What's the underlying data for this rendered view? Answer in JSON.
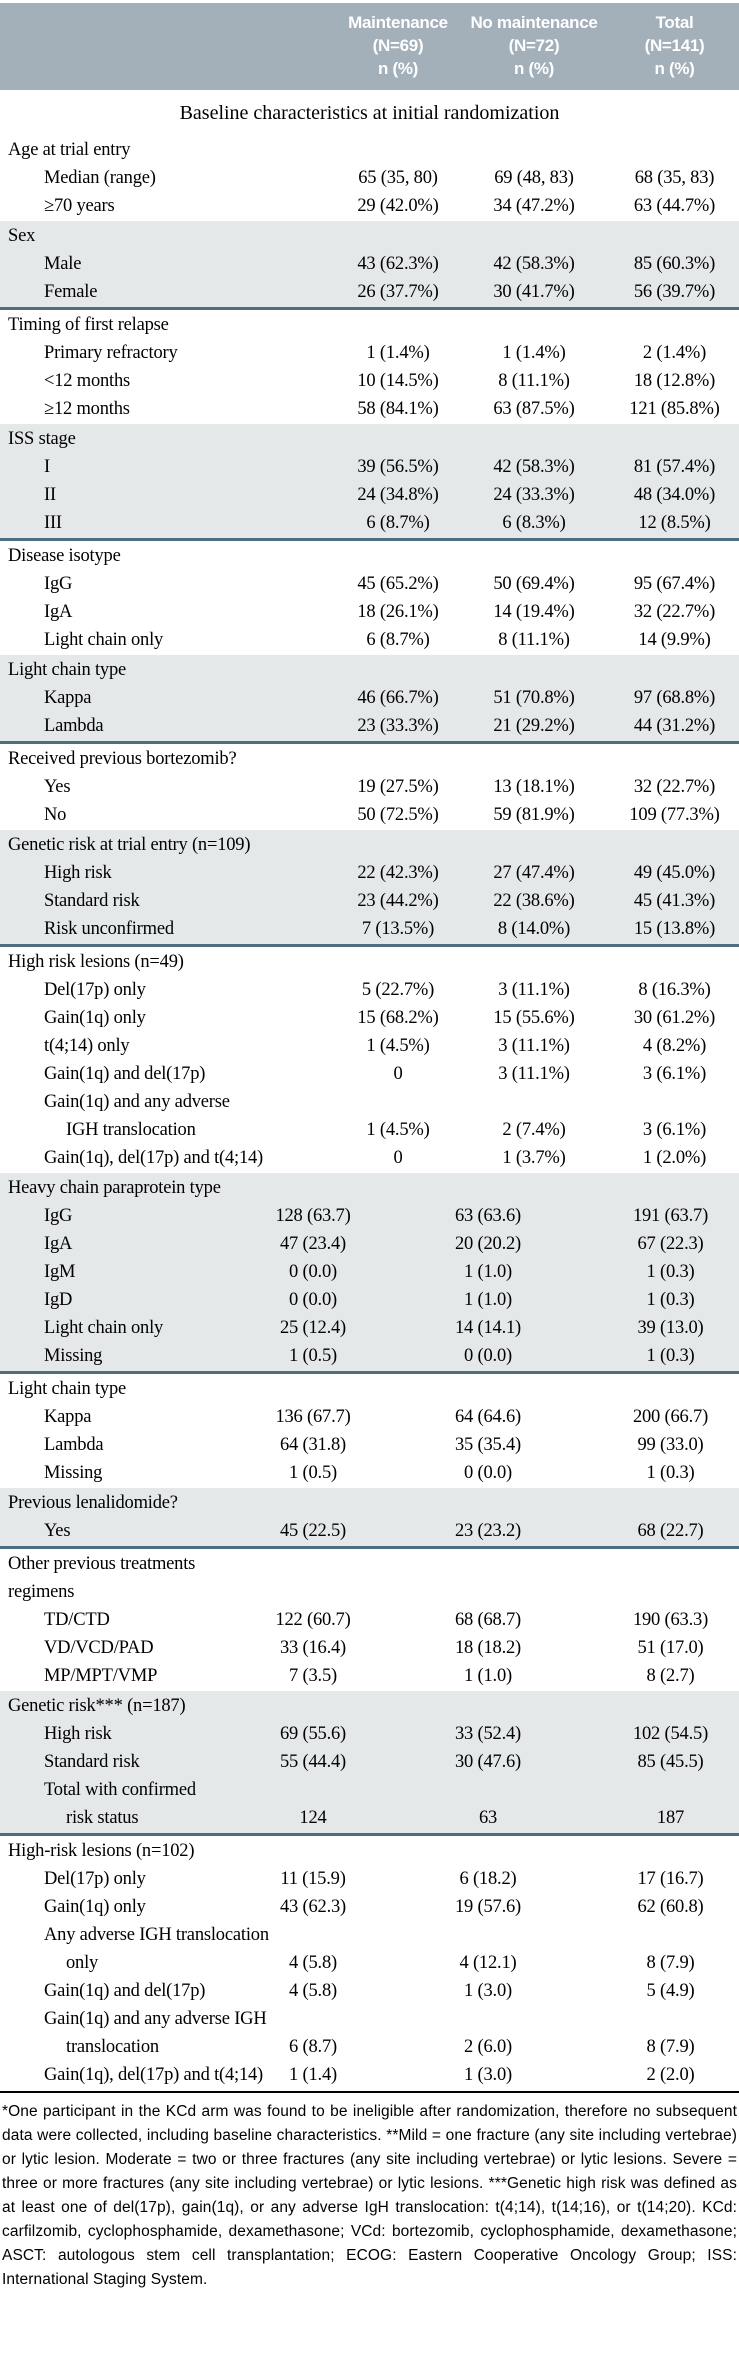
{
  "colors": {
    "header_bg": "#a3afb9",
    "shaded_bg": "#e5e8e9",
    "divider": "#4e6d7e",
    "header_text": "#ffffff"
  },
  "header": {
    "columns": [
      {
        "line1": "Maintenance",
        "line2": "(N=69)",
        "line3": "n (%)"
      },
      {
        "line1": "No maintenance",
        "line2": "(N=72)",
        "line3": "n (%)"
      },
      {
        "line1": "Total",
        "line2": "(N=141)",
        "line3": "n (%)"
      }
    ]
  },
  "title": "Baseline characteristics at initial randomization",
  "sections": [
    {
      "label_lines": [
        "Age at trial entry"
      ],
      "shaded": false,
      "divider": false,
      "layout": "top",
      "rows": [
        {
          "label": "Median (range)",
          "indent": 1,
          "values": [
            "65 (35, 80)",
            "69 (48, 83)",
            "68 (35, 83)"
          ]
        },
        {
          "label": "≥70 years",
          "indent": 1,
          "values": [
            "29 (42.0%)",
            "34 (47.2%)",
            "63 (44.7%)"
          ]
        }
      ]
    },
    {
      "label_lines": [
        "Sex"
      ],
      "shaded": true,
      "divider": true,
      "layout": "top",
      "rows": [
        {
          "label": "Male",
          "indent": 1,
          "values": [
            "43 (62.3%)",
            "42 (58.3%)",
            "85 (60.3%)"
          ]
        },
        {
          "label": "Female",
          "indent": 1,
          "values": [
            "26 (37.7%)",
            "30 (41.7%)",
            "56 (39.7%)"
          ]
        }
      ]
    },
    {
      "label_lines": [
        "Timing of first relapse"
      ],
      "shaded": false,
      "divider": false,
      "layout": "top",
      "rows": [
        {
          "label": "Primary refractory",
          "indent": 1,
          "values": [
            "1 (1.4%)",
            "1 (1.4%)",
            "2 (1.4%)"
          ]
        },
        {
          "label": "<12 months",
          "indent": 1,
          "values": [
            "10 (14.5%)",
            "8 (11.1%)",
            "18 (12.8%)"
          ]
        },
        {
          "label": "≥12 months",
          "indent": 1,
          "values": [
            "58 (84.1%)",
            "63 (87.5%)",
            "121 (85.8%)"
          ]
        }
      ]
    },
    {
      "label_lines": [
        "ISS stage"
      ],
      "shaded": true,
      "divider": true,
      "layout": "top",
      "rows": [
        {
          "label": "I",
          "indent": 1,
          "values": [
            "39 (56.5%)",
            "42 (58.3%)",
            "81 (57.4%)"
          ]
        },
        {
          "label": "II",
          "indent": 1,
          "values": [
            "24 (34.8%)",
            "24 (33.3%)",
            "48 (34.0%)"
          ]
        },
        {
          "label": "III",
          "indent": 1,
          "values": [
            "6 (8.7%)",
            "6 (8.3%)",
            "12 (8.5%)"
          ]
        }
      ]
    },
    {
      "label_lines": [
        "Disease isotype"
      ],
      "shaded": false,
      "divider": false,
      "layout": "top",
      "rows": [
        {
          "label": "IgG",
          "indent": 1,
          "values": [
            "45 (65.2%)",
            "50 (69.4%)",
            "95 (67.4%)"
          ]
        },
        {
          "label": "IgA",
          "indent": 1,
          "values": [
            "18 (26.1%)",
            "14 (19.4%)",
            "32 (22.7%)"
          ]
        },
        {
          "label": "Light chain only",
          "indent": 1,
          "values": [
            "6 (8.7%)",
            "8 (11.1%)",
            "14 (9.9%)"
          ]
        }
      ]
    },
    {
      "label_lines": [
        "Light chain type"
      ],
      "shaded": true,
      "divider": true,
      "layout": "top",
      "rows": [
        {
          "label": "Kappa",
          "indent": 1,
          "values": [
            "46 (66.7%)",
            "51 (70.8%)",
            "97 (68.8%)"
          ]
        },
        {
          "label": "Lambda",
          "indent": 1,
          "values": [
            "23 (33.3%)",
            "21 (29.2%)",
            "44 (31.2%)"
          ]
        }
      ]
    },
    {
      "label_lines": [
        "Received previous bortezomib?"
      ],
      "shaded": false,
      "divider": false,
      "layout": "top",
      "rows": [
        {
          "label": "Yes",
          "indent": 1,
          "values": [
            "19 (27.5%)",
            "13 (18.1%)",
            "32 (22.7%)"
          ]
        },
        {
          "label": "No",
          "indent": 1,
          "values": [
            "50 (72.5%)",
            "59 (81.9%)",
            "109 (77.3%)"
          ]
        }
      ]
    },
    {
      "label_lines": [
        "Genetic risk at trial entry (n=109)"
      ],
      "shaded": true,
      "divider": true,
      "layout": "top",
      "rows": [
        {
          "label": "High risk",
          "indent": 1,
          "values": [
            "22 (42.3%)",
            "27 (47.4%)",
            "49 (45.0%)"
          ]
        },
        {
          "label": "Standard risk",
          "indent": 1,
          "values": [
            "23 (44.2%)",
            "22 (38.6%)",
            "45 (41.3%)"
          ]
        },
        {
          "label": "Risk unconfirmed",
          "indent": 1,
          "values": [
            "7 (13.5%)",
            "8 (14.0%)",
            "15 (13.8%)"
          ]
        }
      ]
    },
    {
      "label_lines": [
        "High risk lesions (n=49)"
      ],
      "shaded": false,
      "divider": false,
      "layout": "top",
      "rows": [
        {
          "label": "Del(17p) only",
          "indent": 1,
          "values": [
            "5 (22.7%)",
            "3 (11.1%)",
            "8 (16.3%)"
          ]
        },
        {
          "label": "Gain(1q) only",
          "indent": 1,
          "values": [
            "15 (68.2%)",
            "15 (55.6%)",
            "30 (61.2%)"
          ]
        },
        {
          "label": "t(4;14) only",
          "indent": 1,
          "values": [
            "1 (4.5%)",
            "3 (11.1%)",
            "4 (8.2%)"
          ]
        },
        {
          "label": "Gain(1q) and del(17p)",
          "indent": 1,
          "values": [
            "0",
            "3 (11.1%)",
            "3 (6.1%)"
          ]
        },
        {
          "label": "Gain(1q) and any adverse",
          "indent": 1,
          "values": [
            "",
            "",
            ""
          ]
        },
        {
          "label": "IGH translocation",
          "indent": 2,
          "values": [
            "1 (4.5%)",
            "2 (7.4%)",
            "3 (6.1%)"
          ]
        },
        {
          "label": "Gain(1q), del(17p) and t(4;14)",
          "indent": 1,
          "values": [
            "0",
            "1 (3.7%)",
            "1 (2.0%)"
          ]
        }
      ]
    },
    {
      "label_lines": [
        "Heavy chain paraprotein type"
      ],
      "shaded": true,
      "divider": true,
      "layout": "bottom",
      "rows": [
        {
          "label": "IgG",
          "indent": 1,
          "values": [
            "128 (63.7)",
            "63 (63.6)",
            "191 (63.7)"
          ]
        },
        {
          "label": "IgA",
          "indent": 1,
          "values": [
            "47 (23.4)",
            "20 (20.2)",
            "67 (22.3)"
          ]
        },
        {
          "label": "IgM",
          "indent": 1,
          "values": [
            "0 (0.0)",
            "1 (1.0)",
            "1 (0.3)"
          ]
        },
        {
          "label": "IgD",
          "indent": 1,
          "values": [
            "0 (0.0)",
            "1 (1.0)",
            "1 (0.3)"
          ]
        },
        {
          "label": "Light chain only",
          "indent": 1,
          "values": [
            "25 (12.4)",
            "14 (14.1)",
            "39 (13.0)"
          ]
        },
        {
          "label": "Missing",
          "indent": 1,
          "values": [
            "1 (0.5)",
            "0 (0.0)",
            "1 (0.3)"
          ]
        }
      ]
    },
    {
      "label_lines": [
        "Light chain type"
      ],
      "shaded": false,
      "divider": false,
      "layout": "bottom",
      "rows": [
        {
          "label": "Kappa",
          "indent": 1,
          "values": [
            "136 (67.7)",
            "64 (64.6)",
            "200 (66.7)"
          ]
        },
        {
          "label": "Lambda",
          "indent": 1,
          "values": [
            "64 (31.8)",
            "35 (35.4)",
            "99 (33.0)"
          ]
        },
        {
          "label": "Missing",
          "indent": 1,
          "values": [
            "1 (0.5)",
            "0 (0.0)",
            "1 (0.3)"
          ]
        }
      ]
    },
    {
      "label_lines": [
        "Previous lenalidomide?"
      ],
      "shaded": true,
      "divider": true,
      "layout": "bottom",
      "rows": [
        {
          "label": "Yes",
          "indent": 1,
          "values": [
            "45 (22.5)",
            "23 (23.2)",
            "68 (22.7)"
          ]
        }
      ]
    },
    {
      "label_lines": [
        "Other previous treatments",
        "regimens"
      ],
      "shaded": false,
      "divider": false,
      "layout": "bottom",
      "rows": [
        {
          "label": "TD/CTD",
          "indent": 1,
          "values": [
            "122 (60.7)",
            "68 (68.7)",
            "190 (63.3)"
          ]
        },
        {
          "label": "VD/VCD/PAD",
          "indent": 1,
          "values": [
            "33 (16.4)",
            "18 (18.2)",
            "51 (17.0)"
          ]
        },
        {
          "label": "MP/MPT/VMP",
          "indent": 1,
          "values": [
            "7 (3.5)",
            "1 (1.0)",
            "8 (2.7)"
          ]
        }
      ]
    },
    {
      "label_lines": [
        "Genetic risk*** (n=187)"
      ],
      "shaded": true,
      "divider": true,
      "layout": "bottom",
      "rows": [
        {
          "label": "High risk",
          "indent": 1,
          "values": [
            "69 (55.6)",
            "33 (52.4)",
            "102 (54.5)"
          ]
        },
        {
          "label": "Standard risk",
          "indent": 1,
          "values": [
            "55 (44.4)",
            "30 (47.6)",
            "85 (45.5)"
          ]
        },
        {
          "label": "Total with confirmed",
          "indent": 1,
          "values": [
            "",
            "",
            ""
          ]
        },
        {
          "label": "risk status",
          "indent": 2,
          "values": [
            "124",
            "63",
            "187"
          ]
        }
      ]
    },
    {
      "label_lines": [
        "High-risk lesions (n=102)"
      ],
      "shaded": false,
      "divider": false,
      "layout": "bottom",
      "rows": [
        {
          "label": "Del(17p) only",
          "indent": 1,
          "values": [
            "11 (15.9)",
            "6 (18.2)",
            "17 (16.7)"
          ]
        },
        {
          "label": "Gain(1q) only",
          "indent": 1,
          "values": [
            "43 (62.3)",
            "19 (57.6)",
            "62 (60.8)"
          ]
        },
        {
          "label": "Any adverse IGH translocation",
          "indent": 1,
          "values": [
            "",
            "",
            ""
          ]
        },
        {
          "label": "only",
          "indent": 2,
          "values": [
            "4 (5.8)",
            "4 (12.1)",
            "8 (7.9)"
          ]
        },
        {
          "label": "Gain(1q) and del(17p)",
          "indent": 1,
          "values": [
            "4 (5.8)",
            "1 (3.0)",
            "5 (4.9)"
          ]
        },
        {
          "label": "Gain(1q) and any adverse IGH",
          "indent": 1,
          "values": [
            "",
            "",
            ""
          ]
        },
        {
          "label": "translocation",
          "indent": 2,
          "values": [
            "6 (8.7)",
            "2 (6.0)",
            "8 (7.9)"
          ]
        },
        {
          "label": "Gain(1q), del(17p) and t(4;14)",
          "indent": 1,
          "values": [
            "1 (1.4)",
            "1 (3.0)",
            "2 (2.0)"
          ]
        }
      ]
    }
  ],
  "footnote": "*One participant in the KCd arm was found to be ineligible after randomization, therefore no subsequent data were collected, including baseline characteristics. **Mild = one fracture (any site including vertebrae) or lytic lesion. Moderate = two or three fractures (any site including vertebrae) or lytic lesions. Severe = three or more fractures (any site including vertebrae) or lytic lesions. ***Genetic high risk was defined as at least one of del(17p), gain(1q), or any adverse IgH translocation: t(4;14), t(14;16), or t(14;20). KCd: carfilzomib, cyclophosphamide, dexamethasone; VCd: bortezomib, cyclophosphamide, dexamethasone; ASCT: autologous stem cell transplantation; ECOG: Eastern Cooperative Oncology Group; ISS: International Staging System."
}
